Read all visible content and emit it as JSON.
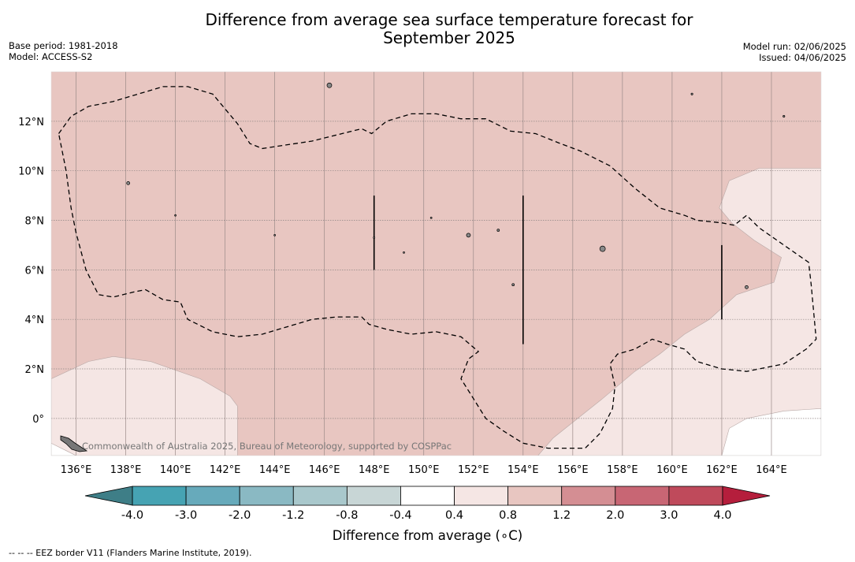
{
  "title_line1": "Difference from average sea surface temperature forecast for",
  "title_line2": "September 2025",
  "meta_left": [
    "Base period: 1981-2018",
    "Model: ACCESS-S2"
  ],
  "meta_right": [
    "Model run: 02/06/2025",
    "Issued: 04/06/2025"
  ],
  "watermark": "Commonwealth of Australia 2025, Bureau of Meteorology, supported by COSPPac",
  "footnote": "--  --  -- EEZ border V11 (Flanders Marine Institute, 2019).",
  "colorbar_label": "Difference from average (∘C)",
  "colors": {
    "bins": [
      "#46a3b3",
      "#67aabb",
      "#8ab9c3",
      "#a9c8cc",
      "#c8d6d6",
      "#ffffff",
      "#f5e6e4",
      "#e8c6c1",
      "#d48e93",
      "#c86674",
      "#bf4a5b"
    ],
    "under": "#3e7e87",
    "over": "#b51e3c"
  },
  "chart_data": {
    "type": "heatmap",
    "map_type": "filled contour map",
    "x_axis": {
      "unit": "longitude",
      "range": [
        135,
        166
      ],
      "ticks": [
        136,
        138,
        140,
        142,
        144,
        146,
        148,
        150,
        152,
        154,
        156,
        158,
        160,
        162,
        164
      ],
      "tick_labels": [
        "136°E",
        "138°E",
        "140°E",
        "142°E",
        "144°E",
        "146°E",
        "148°E",
        "150°E",
        "152°E",
        "154°E",
        "156°E",
        "158°E",
        "160°E",
        "162°E",
        "164°E"
      ]
    },
    "y_axis": {
      "unit": "latitude",
      "range": [
        -1.5,
        14
      ],
      "ticks": [
        0,
        2,
        4,
        6,
        8,
        10,
        12
      ],
      "tick_labels": [
        "0°",
        "2°N",
        "4°N",
        "6°N",
        "8°N",
        "10°N",
        "12°N"
      ]
    },
    "grid": true,
    "colorbar": {
      "levels": [
        -4.0,
        -3.0,
        -2.0,
        -1.2,
        -0.8,
        -0.4,
        0.4,
        0.8,
        1.2,
        2.0,
        3.0,
        4.0
      ],
      "level_labels": [
        "-4.0",
        "-3.0",
        "-2.0",
        "-1.2",
        "-0.8",
        "-0.4",
        "0.4",
        "0.8",
        "1.2",
        "2.0",
        "3.0",
        "4.0"
      ],
      "extend": "both"
    },
    "regions": [
      {
        "range": "0.4 to 0.8",
        "bin": 6,
        "polygons": [
          [
            [
              135,
              1.6
            ],
            [
              136.5,
              2.3
            ],
            [
              137.5,
              2.5
            ],
            [
              139,
              2.3
            ],
            [
              141,
              1.6
            ],
            [
              142.2,
              0.9
            ],
            [
              142.5,
              0.5
            ],
            [
              142.5,
              -1.5
            ],
            [
              135,
              -1.5
            ]
          ],
          [
            [
              166,
              10.1
            ],
            [
              163.5,
              10.1
            ],
            [
              162.3,
              9.6
            ],
            [
              161.9,
              8.5
            ],
            [
              162.4,
              7.9
            ],
            [
              163.3,
              7.2
            ],
            [
              164.4,
              6.5
            ],
            [
              164.1,
              5.5
            ],
            [
              162.6,
              5.0
            ],
            [
              161.5,
              4.0
            ],
            [
              160.5,
              3.4
            ],
            [
              159.5,
              2.6
            ],
            [
              158.5,
              1.9
            ],
            [
              157.2,
              0.8
            ],
            [
              156.2,
              0
            ],
            [
              155.2,
              -0.8
            ],
            [
              154.6,
              -1.5
            ],
            [
              166,
              -1.5
            ]
          ]
        ]
      },
      {
        "range": "-0.4 to 0.4",
        "bin": 5,
        "polygons": [
          [
            [
              135,
              -1.5
            ],
            [
              135,
              -1.0
            ],
            [
              135.6,
              -1.3
            ],
            [
              136,
              -1.5
            ]
          ],
          [
            [
              166,
              0.4
            ],
            [
              164.5,
              0.3
            ],
            [
              163,
              0
            ],
            [
              162.3,
              -0.4
            ],
            [
              162,
              -1.5
            ],
            [
              166,
              -1.5
            ]
          ]
        ]
      }
    ],
    "eez_boundary": [
      [
        [
          135.3,
          11.5
        ],
        [
          135.8,
          12.2
        ],
        [
          136.5,
          12.6
        ],
        [
          137.5,
          12.8
        ],
        [
          138.5,
          13.1
        ],
        [
          139.5,
          13.4
        ],
        [
          140.5,
          13.4
        ],
        [
          141.5,
          13.1
        ],
        [
          142.5,
          11.9
        ],
        [
          143,
          11.1
        ],
        [
          143.5,
          10.9
        ],
        [
          145.5,
          11.2
        ],
        [
          147.5,
          11.7
        ],
        [
          147.9,
          11.5
        ],
        [
          148.5,
          12
        ],
        [
          149.5,
          12.3
        ],
        [
          150.5,
          12.3
        ],
        [
          151.5,
          12.1
        ],
        [
          152.5,
          12.1
        ],
        [
          153.5,
          11.6
        ],
        [
          154.5,
          11.5
        ],
        [
          155.5,
          11.1
        ],
        [
          156.3,
          10.8
        ],
        [
          157.5,
          10.2
        ],
        [
          158.5,
          9.3
        ],
        [
          159.5,
          8.5
        ],
        [
          160.5,
          8.2
        ],
        [
          161,
          8.0
        ],
        [
          162,
          7.9
        ],
        [
          162.5,
          7.8
        ],
        [
          163,
          8.2
        ],
        [
          163.5,
          7.7
        ],
        [
          164.5,
          7.0
        ],
        [
          165.5,
          6.3
        ],
        [
          165.6,
          5.4
        ],
        [
          165.8,
          3.2
        ],
        [
          165.4,
          2.8
        ],
        [
          164.5,
          2.2
        ],
        [
          163,
          1.9
        ],
        [
          162,
          2.0
        ],
        [
          161,
          2.3
        ],
        [
          160.5,
          2.8
        ],
        [
          159.8,
          3.0
        ],
        [
          159.2,
          3.2
        ],
        [
          158.5,
          2.8
        ],
        [
          157.8,
          2.6
        ],
        [
          157.5,
          2.2
        ],
        [
          157.7,
          1.3
        ],
        [
          157.6,
          0.4
        ],
        [
          157.1,
          -0.6
        ],
        [
          156.5,
          -1.2
        ],
        [
          155,
          -1.2
        ],
        [
          154,
          -1.0
        ],
        [
          153.2,
          -0.5
        ],
        [
          152.5,
          0
        ],
        [
          152,
          0.8
        ],
        [
          151.5,
          1.6
        ],
        [
          151.8,
          2.4
        ],
        [
          152.2,
          2.7
        ],
        [
          151.5,
          3.3
        ],
        [
          150.5,
          3.5
        ],
        [
          149.5,
          3.4
        ],
        [
          148.5,
          3.6
        ],
        [
          147.8,
          3.8
        ],
        [
          147.5,
          4.1
        ],
        [
          146.5,
          4.1
        ],
        [
          145.5,
          4.0
        ],
        [
          144.5,
          3.7
        ],
        [
          143.5,
          3.4
        ],
        [
          142.5,
          3.3
        ],
        [
          141.5,
          3.5
        ],
        [
          140.5,
          4.0
        ],
        [
          140.2,
          4.7
        ],
        [
          139.5,
          4.8
        ],
        [
          138.8,
          5.2
        ],
        [
          138.3,
          5.1
        ],
        [
          137.5,
          4.9
        ],
        [
          136.9,
          5.0
        ],
        [
          136.4,
          6.0
        ],
        [
          136,
          7.5
        ],
        [
          135.8,
          8.5
        ],
        [
          135.6,
          10
        ],
        [
          135.3,
          11.5
        ]
      ]
    ],
    "vertical_segments": [
      {
        "lon": 148,
        "lat": [
          6,
          9
        ]
      },
      {
        "lon": 154,
        "lat": [
          3,
          9
        ]
      },
      {
        "lon": 162,
        "lat": [
          4,
          7
        ]
      }
    ]
  }
}
